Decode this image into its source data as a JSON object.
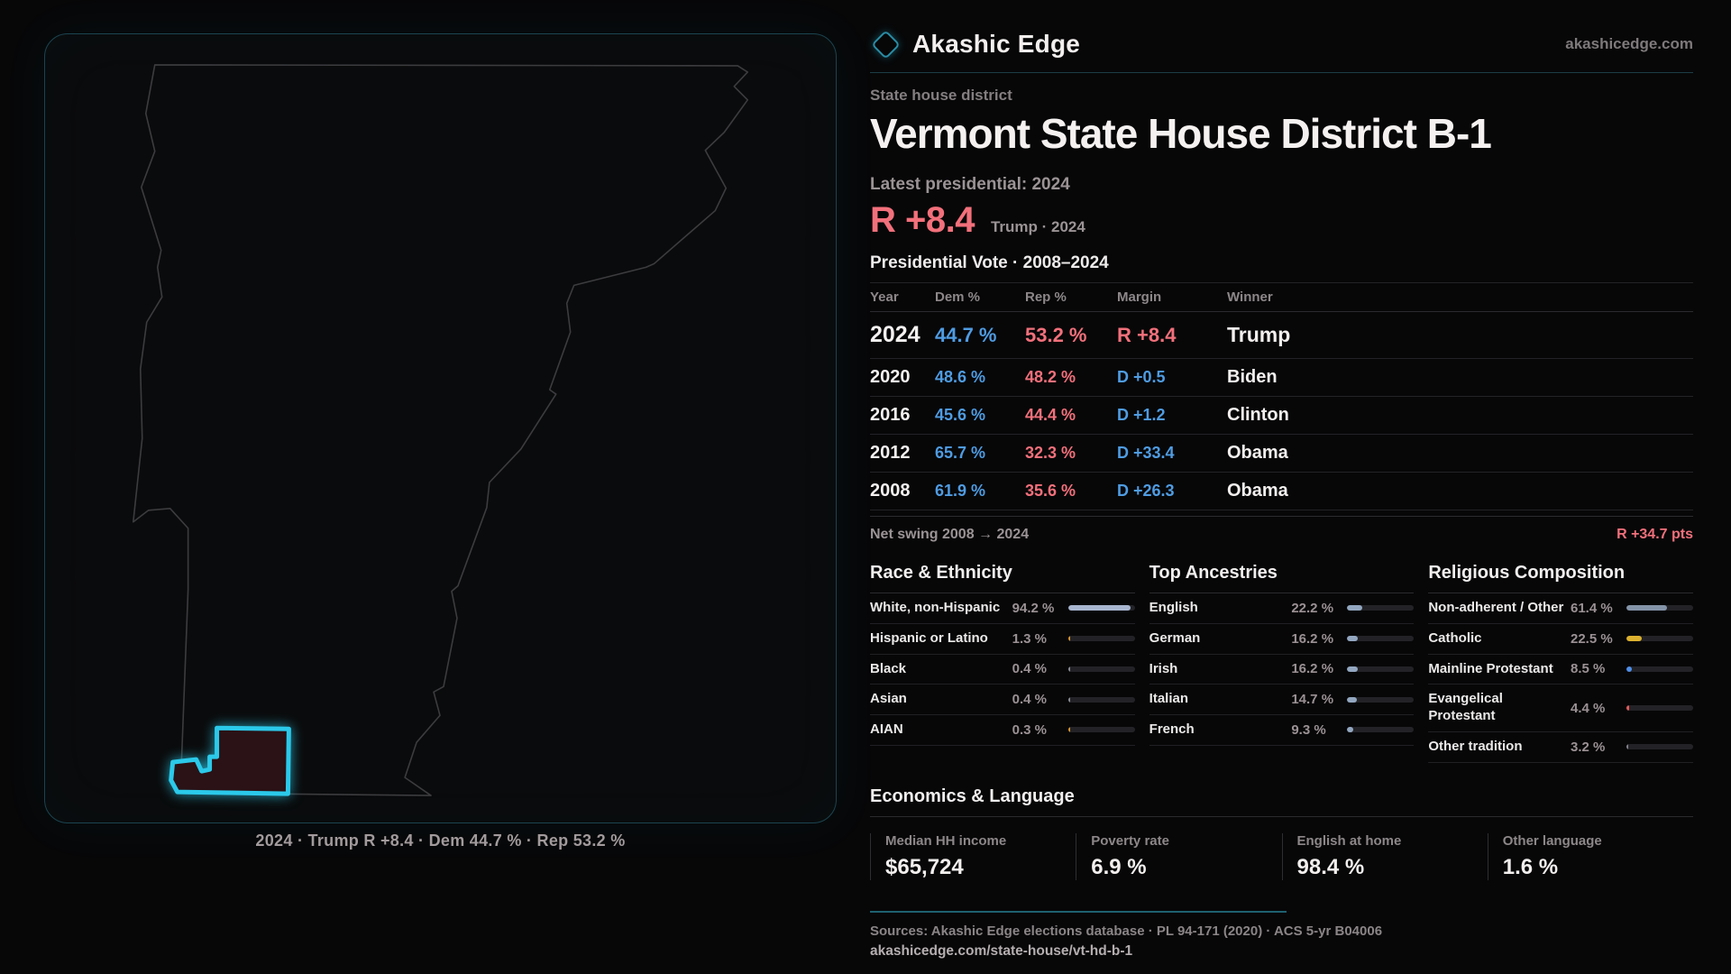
{
  "brand": {
    "name": "Akashic Edge",
    "domain": "akashicedge.com",
    "accent": "#2bc9ea"
  },
  "map": {
    "caption": "2024 · Trump R +8.4 · Dem 44.7 % · Rep 53.2 %",
    "district_fill": "#2a1216",
    "district_stroke": "#2bc9ea"
  },
  "header": {
    "kicker": "State house district",
    "title": "Vermont State House District B-1",
    "latest": "Latest presidential: 2024",
    "margin_value": "R +8.4",
    "margin_detail": "Trump · 2024"
  },
  "table": {
    "title": "Presidential Vote · 2008–2024",
    "columns": [
      "Year",
      "Dem %",
      "Rep %",
      "Margin",
      "Winner"
    ],
    "rows": [
      {
        "year": "2024",
        "dem": "44.7 %",
        "rep": "53.2 %",
        "margin": "R +8.4",
        "winner": "Trump",
        "party": "R"
      },
      {
        "year": "2020",
        "dem": "48.6 %",
        "rep": "48.2 %",
        "margin": "D +0.5",
        "winner": "Biden",
        "party": "D"
      },
      {
        "year": "2016",
        "dem": "45.6 %",
        "rep": "44.4 %",
        "margin": "D +1.2",
        "winner": "Clinton",
        "party": "D"
      },
      {
        "year": "2012",
        "dem": "65.7 %",
        "rep": "32.3 %",
        "margin": "D +33.4",
        "winner": "Obama",
        "party": "D"
      },
      {
        "year": "2008",
        "dem": "61.9 %",
        "rep": "35.6 %",
        "margin": "D +26.3",
        "winner": "Obama",
        "party": "D"
      }
    ]
  },
  "net_swing": {
    "label": "Net swing 2008 → 2024",
    "value": "R +34.7 pts"
  },
  "race": {
    "title": "Race & Ethnicity",
    "rows": [
      {
        "label": "White, non-Hispanic",
        "value": "94.2 %",
        "pct": 94.2,
        "color": "#a9b6cf"
      },
      {
        "label": "Hispanic or Latino",
        "value": "1.3 %",
        "pct": 1.3,
        "color": "#d9972f"
      },
      {
        "label": "Black",
        "value": "0.4 %",
        "pct": 0.4,
        "color": "#8a8a92"
      },
      {
        "label": "Asian",
        "value": "0.4 %",
        "pct": 0.4,
        "color": "#8a8a92"
      },
      {
        "label": "AIAN",
        "value": "0.3 %",
        "pct": 0.3,
        "color": "#d9972f"
      }
    ]
  },
  "ancestries": {
    "title": "Top Ancestries",
    "rows": [
      {
        "label": "English",
        "value": "22.2 %",
        "pct": 22.2,
        "color": "#93a7c0"
      },
      {
        "label": "German",
        "value": "16.2 %",
        "pct": 16.2,
        "color": "#93a7c0"
      },
      {
        "label": "Irish",
        "value": "16.2 %",
        "pct": 16.2,
        "color": "#93a7c0"
      },
      {
        "label": "Italian",
        "value": "14.7 %",
        "pct": 14.7,
        "color": "#93a7c0"
      },
      {
        "label": "French",
        "value": "9.3 %",
        "pct": 9.3,
        "color": "#93a7c0"
      }
    ]
  },
  "religion": {
    "title": "Religious Composition",
    "rows": [
      {
        "label": "Non-adherent / Other",
        "value": "61.4 %",
        "pct": 61.4,
        "color": "#8494a8"
      },
      {
        "label": "Catholic",
        "value": "22.5 %",
        "pct": 22.5,
        "color": "#dcb12f"
      },
      {
        "label": "Mainline Protestant",
        "value": "8.5 %",
        "pct": 8.5,
        "color": "#4f8fe8"
      },
      {
        "label": "Evangelical Protestant",
        "value": "4.4 %",
        "pct": 4.4,
        "color": "#e25b5b"
      },
      {
        "label": "Other tradition",
        "value": "3.2 %",
        "pct": 3.2,
        "color": "#82828a"
      }
    ]
  },
  "economics": {
    "title": "Economics & Language",
    "stats": [
      {
        "label": "Median HH income",
        "value": "$65,724"
      },
      {
        "label": "Poverty rate",
        "value": "6.9 %"
      },
      {
        "label": "English at home",
        "value": "98.4 %"
      },
      {
        "label": "Other language",
        "value": "1.6 %"
      }
    ]
  },
  "footer": {
    "sources": "Sources: Akashic Edge elections database · PL 94-171 (2020) · ACS 5-yr B04006",
    "url": "akashicedge.com/state-house/vt-hd-b-1"
  },
  "chart_data": [
    {
      "type": "table",
      "title": "Presidential Vote · 2008–2024",
      "columns": [
        "Year",
        "Dem %",
        "Rep %",
        "Margin",
        "Winner"
      ],
      "rows": [
        [
          "2024",
          "44.7 %",
          "53.2 %",
          "R +8.4",
          "Trump"
        ],
        [
          "2020",
          "48.6 %",
          "48.2 %",
          "D +0.5",
          "Biden"
        ],
        [
          "2016",
          "45.6 %",
          "44.4 %",
          "D +1.2",
          "Clinton"
        ],
        [
          "2012",
          "65.7 %",
          "32.3 %",
          "D +33.4",
          "Obama"
        ],
        [
          "2008",
          "61.9 %",
          "35.6 %",
          "D +26.3",
          "Obama"
        ]
      ],
      "net_swing_2008_2024": "R +34.7 pts"
    },
    {
      "type": "bar",
      "title": "Race & Ethnicity",
      "categories": [
        "White, non-Hispanic",
        "Hispanic or Latino",
        "Black",
        "Asian",
        "AIAN"
      ],
      "values": [
        94.2,
        1.3,
        0.4,
        0.4,
        0.3
      ],
      "xlim": [
        0,
        100
      ],
      "unit": "%"
    },
    {
      "type": "bar",
      "title": "Top Ancestries",
      "categories": [
        "English",
        "German",
        "Irish",
        "Italian",
        "French"
      ],
      "values": [
        22.2,
        16.2,
        16.2,
        14.7,
        9.3
      ],
      "xlim": [
        0,
        100
      ],
      "unit": "%"
    },
    {
      "type": "bar",
      "title": "Religious Composition",
      "categories": [
        "Non-adherent / Other",
        "Catholic",
        "Mainline Protestant",
        "Evangelical Protestant",
        "Other tradition"
      ],
      "values": [
        61.4,
        22.5,
        8.5,
        4.4,
        3.2
      ],
      "xlim": [
        0,
        100
      ],
      "unit": "%"
    }
  ]
}
